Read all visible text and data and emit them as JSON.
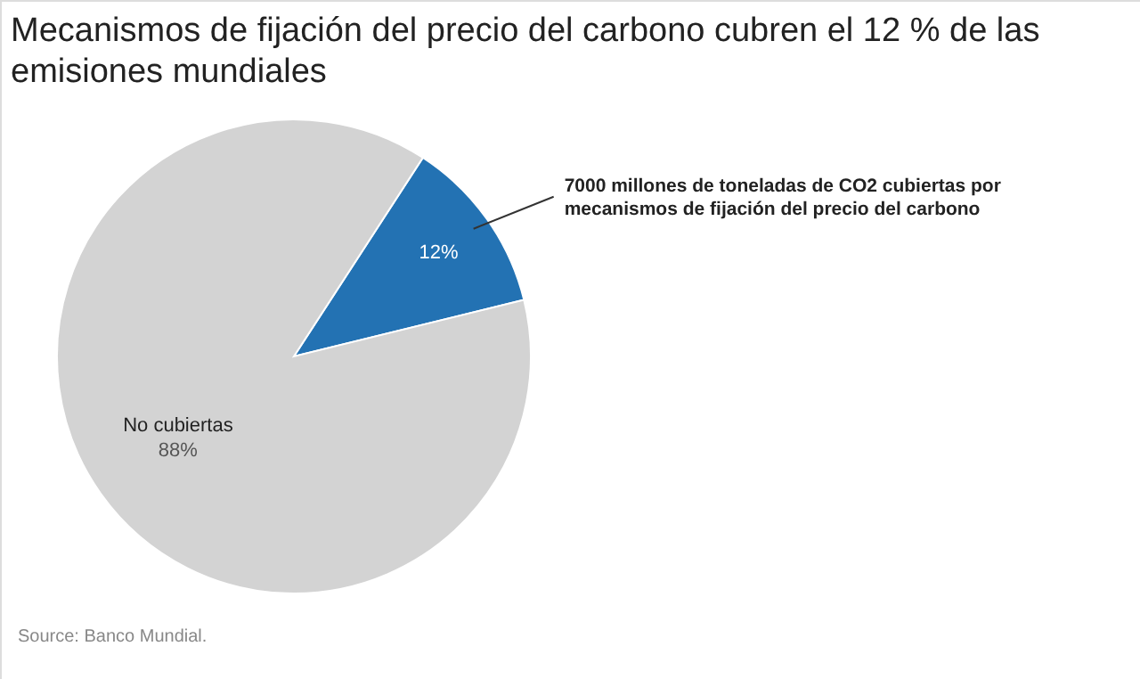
{
  "chart_data": {
    "type": "pie",
    "title": "Mecanismos de fijación del precio del carbono cubren el 12 % de las emisiones mundiales",
    "categories": [
      "7000 millones de toneladas de CO2 cubiertas por mecanismos de fijación del precio del carbono",
      "No cubiertas"
    ],
    "values": [
      12,
      88
    ],
    "colors": [
      "#2372b3",
      "#d3d3d3"
    ],
    "value_labels": [
      "12%",
      "88%"
    ],
    "annotations": [
      "Source: Banco Mundial."
    ]
  }
}
